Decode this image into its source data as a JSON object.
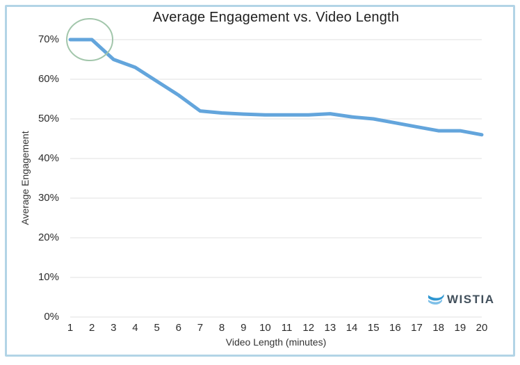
{
  "watermark": {
    "brand": "WISTIA",
    "icon": "wistia-swoosh-icon"
  },
  "chart_data": {
    "type": "line",
    "title": "Average Engagement vs. Video Length",
    "xlabel": "Video Length (minutes)",
    "ylabel": "Average Engagement",
    "x": [
      1,
      2,
      3,
      4,
      5,
      6,
      7,
      8,
      9,
      10,
      11,
      12,
      13,
      14,
      15,
      16,
      17,
      18,
      19,
      20
    ],
    "values": [
      70,
      70,
      65,
      63,
      59.5,
      56,
      52,
      51.5,
      51.2,
      51,
      51,
      51,
      51.3,
      50.5,
      50,
      49,
      48,
      47,
      47,
      46
    ],
    "y_tick_labels": [
      "0%",
      "10%",
      "20%",
      "30%",
      "40%",
      "50%",
      "60%",
      "70%"
    ],
    "y_tick_values": [
      0,
      10,
      20,
      30,
      40,
      50,
      60,
      70
    ],
    "ylim": [
      0,
      70
    ],
    "grid": "horizontal",
    "legend": "none",
    "annotations": [
      {
        "shape": "ellipse",
        "note": "highlights the 70% engagement plateau at 1-2 minutes",
        "center_x_minutes": 1.9,
        "center_y_pct": 70
      }
    ],
    "colors": {
      "line": "#63a5dc",
      "grid": "#ececec",
      "annotation_circle": "#a2c6ab",
      "frame": "#b2d4e6",
      "title_text": "#1f1f1f",
      "axis_text": "#333333",
      "logo_text": "#42505c",
      "logo_swoosh_dark": "#2e96d1",
      "logo_swoosh_light": "#7fc0e8"
    }
  }
}
